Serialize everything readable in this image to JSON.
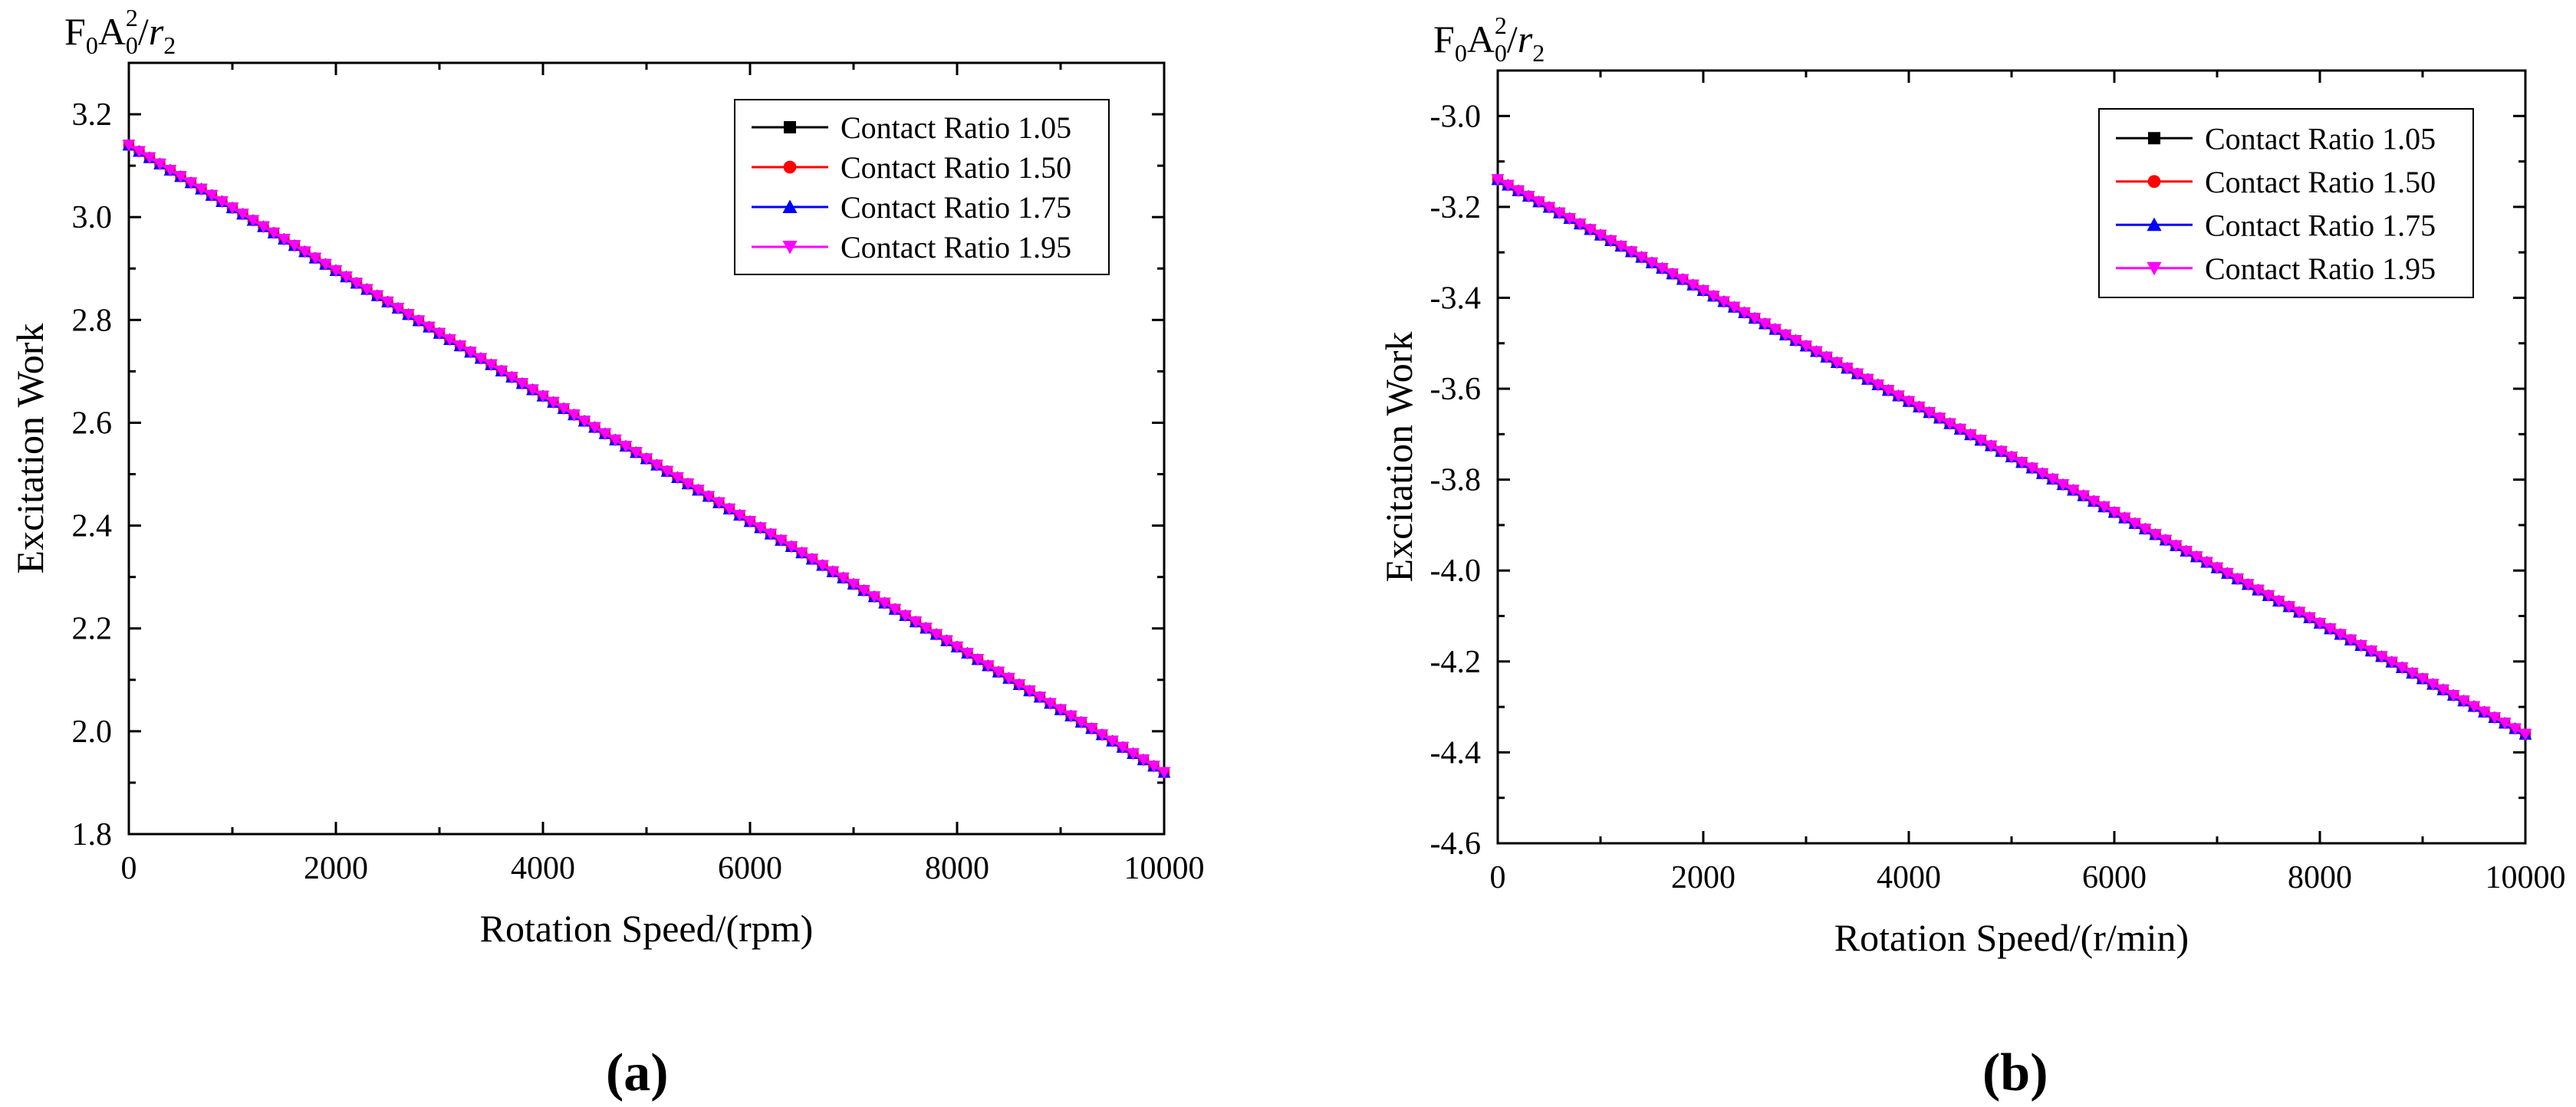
{
  "chart_data": [
    {
      "type": "line",
      "panel": "(a)",
      "title": "",
      "xlabel": "Rotation Speed/(rpm)",
      "ylabel": "Excitation Work",
      "unit_label": {
        "base1": "F",
        "sub1": "0",
        "base2": "A",
        "sup2": "2",
        "sub2": "0",
        "slash": "/",
        "base3": "r",
        "sub3": "2"
      },
      "xlim": [
        0,
        10000
      ],
      "ylim": [
        1.8,
        3.3
      ],
      "xticks": [
        0,
        2000,
        4000,
        6000,
        8000,
        10000
      ],
      "xtick_labels": [
        "0",
        "2000",
        "4000",
        "6000",
        "8000",
        "10000"
      ],
      "yticks": [
        1.8,
        2.0,
        2.2,
        2.4,
        2.6,
        2.8,
        3.0,
        3.2
      ],
      "ytick_labels": [
        "1.8",
        "2.0",
        "2.2",
        "2.4",
        "2.6",
        "2.8",
        "3.0",
        "3.2"
      ],
      "legend_position": "top-right",
      "x": [
        0,
        10000
      ],
      "series": [
        {
          "name": "Contact Ratio 1.05",
          "color": "#000000",
          "marker": "square",
          "values": [
            3.14,
            1.92
          ]
        },
        {
          "name": "Contact Ratio 1.50",
          "color": "#ff0000",
          "marker": "circle",
          "values": [
            3.14,
            1.92
          ]
        },
        {
          "name": "Contact Ratio 1.75",
          "color": "#0000ff",
          "marker": "triangle-up",
          "values": [
            3.14,
            1.92
          ]
        },
        {
          "name": "Contact Ratio 1.95",
          "color": "#ff00ff",
          "marker": "triangle-down",
          "values": [
            3.14,
            1.92
          ]
        }
      ]
    },
    {
      "type": "line",
      "panel": "(b)",
      "title": "",
      "xlabel": "Rotation Speed/(r/min)",
      "ylabel": "Excitation Work",
      "unit_label": {
        "base1": "F",
        "sub1": "0",
        "base2": "A",
        "sup2": "2",
        "sub2": "0",
        "slash": "/",
        "base3": "r",
        "sub3": "2"
      },
      "xlim": [
        0,
        10000
      ],
      "ylim": [
        -4.6,
        -2.9
      ],
      "xticks": [
        0,
        2000,
        4000,
        6000,
        8000,
        10000
      ],
      "xtick_labels": [
        "0",
        "2000",
        "4000",
        "6000",
        "8000",
        "10000"
      ],
      "yticks": [
        -4.6,
        -4.4,
        -4.2,
        -4.0,
        -3.8,
        -3.6,
        -3.4,
        -3.2,
        -3.0
      ],
      "ytick_labels": [
        "-4.6",
        "-4.4",
        "-4.2",
        "-4.0",
        "-3.8",
        "-3.6",
        "-3.4",
        "-3.2",
        "-3.0"
      ],
      "legend_position": "top-right",
      "x": [
        0,
        10000
      ],
      "series": [
        {
          "name": "Contact Ratio 1.05",
          "color": "#000000",
          "marker": "square",
          "values": [
            -3.14,
            -4.36
          ]
        },
        {
          "name": "Contact Ratio 1.50",
          "color": "#ff0000",
          "marker": "circle",
          "values": [
            -3.14,
            -4.36
          ]
        },
        {
          "name": "Contact Ratio 1.75",
          "color": "#0000ff",
          "marker": "triangle-up",
          "values": [
            -3.14,
            -4.36
          ]
        },
        {
          "name": "Contact Ratio 1.95",
          "color": "#ff00ff",
          "marker": "triangle-down",
          "values": [
            -3.14,
            -4.36
          ]
        }
      ]
    }
  ],
  "captions": {
    "a": "(a)",
    "b": "(b)"
  }
}
